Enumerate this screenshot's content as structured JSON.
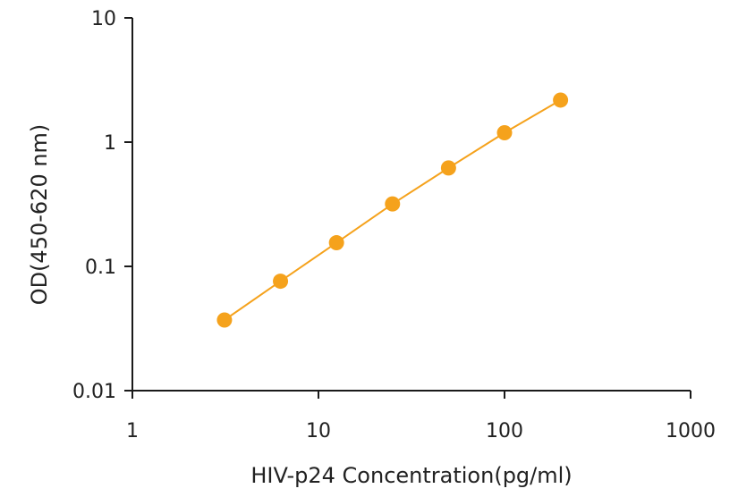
{
  "chart_data": {
    "type": "scatter",
    "title": "",
    "xlabel": "HIV-p24 Concentration(pg/ml)",
    "ylabel": "OD(450-620 nm)",
    "xscale": "log",
    "yscale": "log",
    "xlim": [
      1,
      1000
    ],
    "ylim": [
      0.01,
      10
    ],
    "x_ticks": [
      1,
      10,
      100,
      1000
    ],
    "x_tick_labels": [
      "1",
      "10",
      "100",
      "1000"
    ],
    "y_ticks": [
      0.01,
      0.1,
      1,
      10
    ],
    "y_tick_labels": [
      "0.01",
      "0.1",
      "1",
      "10"
    ],
    "grid": false,
    "legend": "none",
    "series": [
      {
        "color": "#f5a21c",
        "line": true,
        "x": [
          3.125,
          6.25,
          12.5,
          25,
          50,
          100,
          200
        ],
        "y": [
          0.037,
          0.076,
          0.155,
          0.318,
          0.62,
          1.19,
          2.18
        ]
      }
    ]
  }
}
